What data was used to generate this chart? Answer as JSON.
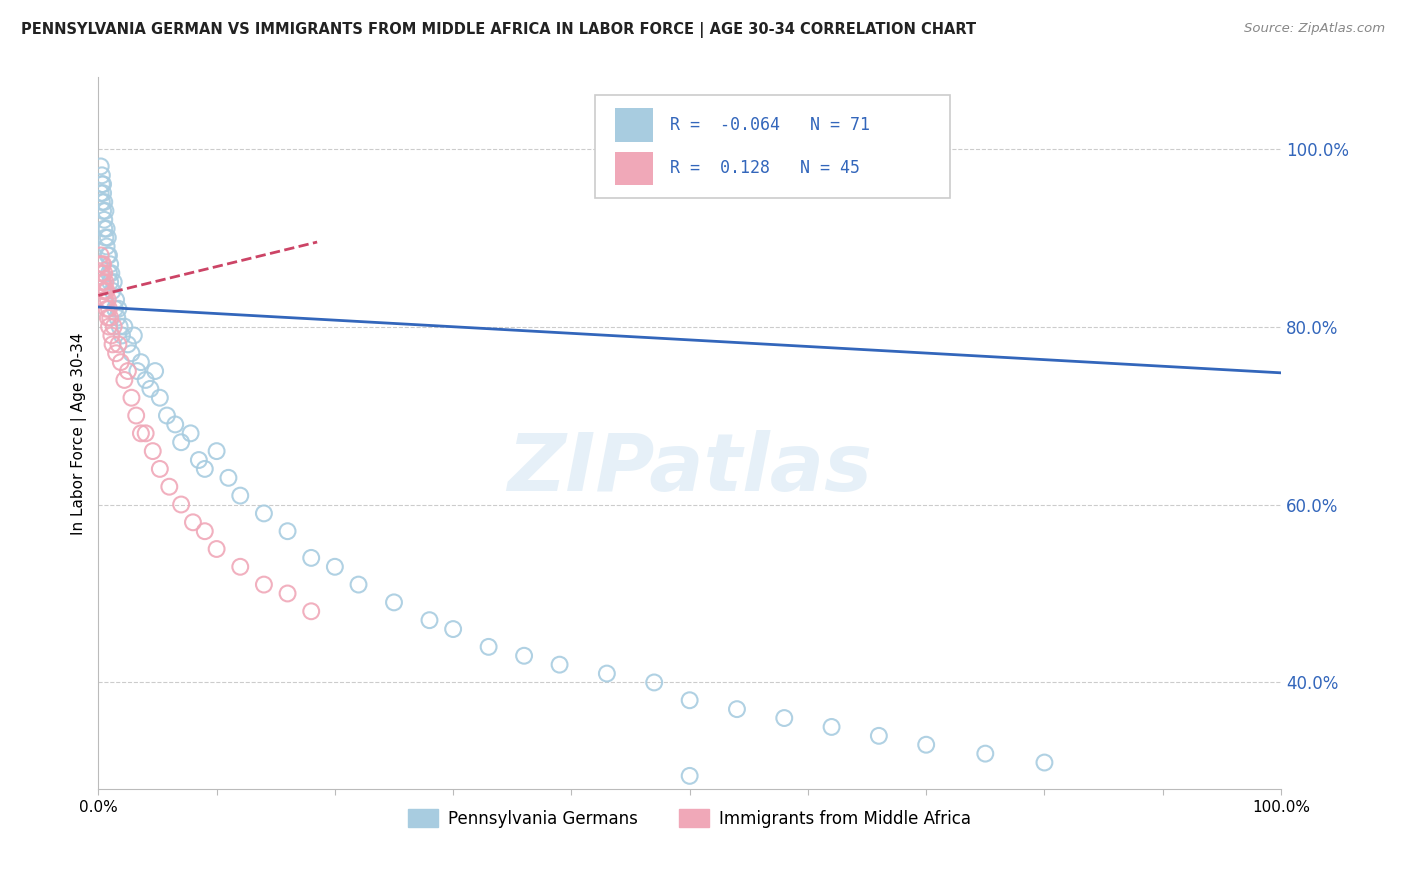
{
  "title": "PENNSYLVANIA GERMAN VS IMMIGRANTS FROM MIDDLE AFRICA IN LABOR FORCE | AGE 30-34 CORRELATION CHART",
  "source": "Source: ZipAtlas.com",
  "ylabel": "In Labor Force | Age 30-34",
  "blue_label": "Pennsylvania Germans",
  "pink_label": "Immigrants from Middle Africa",
  "blue_R": -0.064,
  "blue_N": 71,
  "pink_R": 0.128,
  "pink_N": 45,
  "blue_color": "#a8cce0",
  "pink_color": "#f0a8b8",
  "blue_line_color": "#3366bb",
  "pink_line_color": "#cc4466",
  "xlim": [
    0,
    1.0
  ],
  "ylim": [
    0.28,
    1.08
  ],
  "yticks": [
    0.4,
    0.6,
    0.8,
    1.0
  ],
  "ytick_labels": [
    "40.0%",
    "60.0%",
    "80.0%",
    "100.0%"
  ],
  "blue_line_x0": 0.0,
  "blue_line_x1": 1.0,
  "blue_line_y0": 0.822,
  "blue_line_y1": 0.748,
  "pink_line_x0": 0.0,
  "pink_line_x1": 0.185,
  "pink_line_y0": 0.835,
  "pink_line_y1": 0.895,
  "blue_x": [
    0.002,
    0.002,
    0.003,
    0.003,
    0.003,
    0.004,
    0.004,
    0.004,
    0.005,
    0.005,
    0.005,
    0.006,
    0.006,
    0.007,
    0.007,
    0.008,
    0.008,
    0.009,
    0.009,
    0.01,
    0.01,
    0.011,
    0.012,
    0.013,
    0.014,
    0.015,
    0.016,
    0.017,
    0.018,
    0.02,
    0.022,
    0.025,
    0.028,
    0.03,
    0.033,
    0.036,
    0.04,
    0.044,
    0.048,
    0.052,
    0.058,
    0.065,
    0.07,
    0.078,
    0.085,
    0.09,
    0.1,
    0.11,
    0.12,
    0.14,
    0.16,
    0.18,
    0.2,
    0.22,
    0.25,
    0.28,
    0.3,
    0.33,
    0.36,
    0.39,
    0.43,
    0.47,
    0.5,
    0.54,
    0.58,
    0.62,
    0.66,
    0.7,
    0.75,
    0.8,
    0.5
  ],
  "blue_y": [
    0.95,
    0.98,
    0.97,
    0.96,
    0.94,
    0.96,
    0.95,
    0.93,
    0.92,
    0.94,
    0.91,
    0.93,
    0.9,
    0.91,
    0.89,
    0.88,
    0.9,
    0.86,
    0.88,
    0.87,
    0.85,
    0.86,
    0.84,
    0.85,
    0.82,
    0.83,
    0.81,
    0.82,
    0.8,
    0.79,
    0.8,
    0.78,
    0.77,
    0.79,
    0.75,
    0.76,
    0.74,
    0.73,
    0.75,
    0.72,
    0.7,
    0.69,
    0.67,
    0.68,
    0.65,
    0.64,
    0.66,
    0.63,
    0.61,
    0.59,
    0.57,
    0.54,
    0.53,
    0.51,
    0.49,
    0.47,
    0.46,
    0.44,
    0.43,
    0.42,
    0.41,
    0.4,
    0.38,
    0.37,
    0.36,
    0.35,
    0.34,
    0.33,
    0.32,
    0.31,
    0.295
  ],
  "pink_x": [
    0.001,
    0.002,
    0.002,
    0.003,
    0.003,
    0.003,
    0.004,
    0.004,
    0.004,
    0.005,
    0.005,
    0.005,
    0.006,
    0.006,
    0.006,
    0.007,
    0.007,
    0.008,
    0.008,
    0.009,
    0.009,
    0.01,
    0.011,
    0.012,
    0.013,
    0.015,
    0.017,
    0.019,
    0.022,
    0.025,
    0.028,
    0.032,
    0.036,
    0.04,
    0.046,
    0.052,
    0.06,
    0.07,
    0.08,
    0.09,
    0.1,
    0.12,
    0.14,
    0.16,
    0.18
  ],
  "pink_y": [
    0.87,
    0.86,
    0.88,
    0.87,
    0.85,
    0.86,
    0.85,
    0.84,
    0.87,
    0.84,
    0.83,
    0.86,
    0.84,
    0.83,
    0.85,
    0.82,
    0.84,
    0.83,
    0.81,
    0.82,
    0.8,
    0.81,
    0.79,
    0.78,
    0.8,
    0.77,
    0.78,
    0.76,
    0.74,
    0.75,
    0.72,
    0.7,
    0.68,
    0.68,
    0.66,
    0.64,
    0.62,
    0.6,
    0.58,
    0.57,
    0.55,
    0.53,
    0.51,
    0.5,
    0.48
  ],
  "watermark_text": "ZIPatlas",
  "legend_R_blue": "R = -0.064",
  "legend_N_blue": "N =  71",
  "legend_R_pink": "R =  0.128",
  "legend_N_pink": "N = 45"
}
